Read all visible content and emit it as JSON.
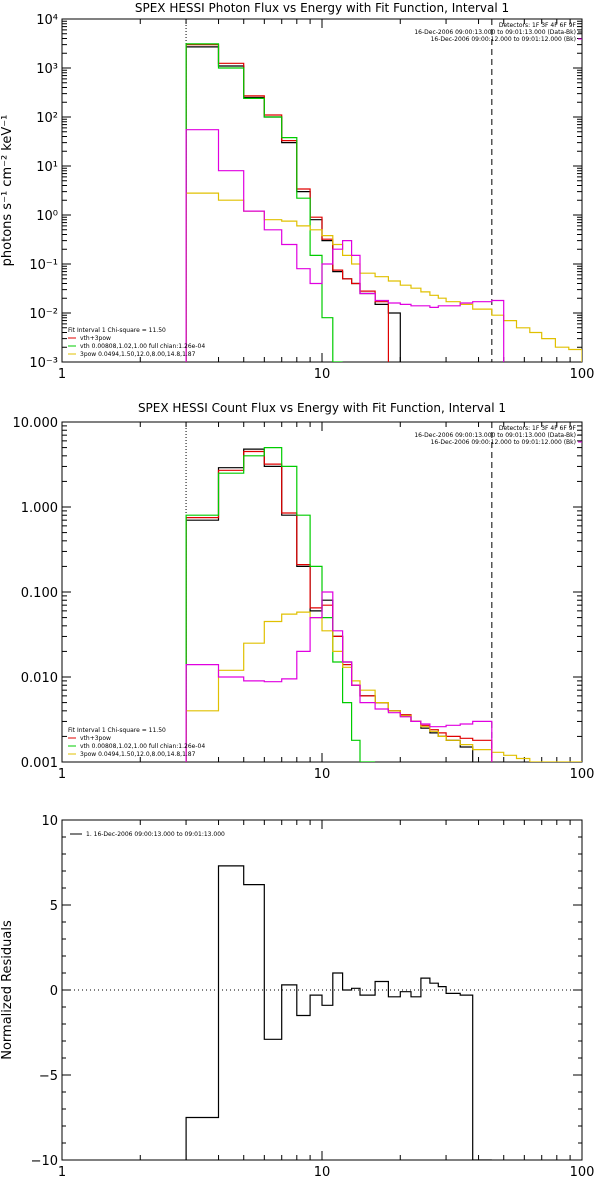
{
  "chart_data": [
    {
      "type": "line",
      "title": "SPEX HESSI Photon Flux vs Energy with Fit Function, Interval 1",
      "ylabel": "photons s⁻¹ cm⁻² keV⁻¹",
      "xlabel": "",
      "xscale": "log",
      "yscale": "log",
      "xlim": [
        1,
        100
      ],
      "ylim": [
        0.001,
        10000
      ],
      "xticks": [
        1,
        10,
        100
      ],
      "xtick_labels": [
        "1",
        "10",
        "100"
      ],
      "yticks": [
        0.001,
        0.01,
        0.1,
        1,
        10,
        100,
        1000,
        10000
      ],
      "ytick_labels": [
        "10⁻³",
        "10⁻²",
        "10⁻¹",
        "10⁰",
        "10¹",
        "10²",
        "10³",
        "10⁴"
      ],
      "vlines": [
        {
          "x": 3,
          "style": "dotted"
        },
        {
          "x": 45,
          "style": "dashed"
        }
      ],
      "legend_top": [
        "Detectors: 1F 3F 4F 6F 9F",
        "16-Dec-2006 09:00:13.000 to 09:01:13.000 (Data-Bk)",
        "16-Dec-2006 09:00:12.000 to 09:01:12.000 (Bk)"
      ],
      "legend_bottom": [
        "Fit Interval  1    Chi-square = 11.50",
        "vth+3pow",
        "vth 0.00808,1.02,1.00  full chian:1.26e-04",
        "3pow 0.0494,1.50,12.0,8.00,14.8,1.87"
      ],
      "edges": [
        3,
        4,
        5,
        6,
        7,
        8,
        9,
        10,
        11,
        12,
        13,
        14,
        16,
        18,
        20,
        22,
        24,
        26,
        28,
        30,
        34,
        38,
        45,
        50,
        56,
        63,
        70,
        79,
        89,
        100
      ],
      "series": [
        {
          "name": "Data-Bk",
          "color": "#000000",
          "values": [
            2700,
            1100,
            250,
            100,
            30,
            3,
            0.8,
            0.3,
            0.07,
            0.05,
            0.04,
            0.025,
            0.015,
            0.01
          ]
        },
        {
          "name": "vth+3pow",
          "color": "#e00000",
          "values": [
            3000,
            1250,
            270,
            110,
            33,
            3.4,
            0.9,
            0.32,
            0.075,
            0.05,
            0.04,
            0.028,
            0.017
          ]
        },
        {
          "name": "vth 0.00808,1.02,1.00  full chian:1.26e-04",
          "color": "#00cc00",
          "values": [
            3100,
            1000,
            240,
            100,
            38,
            2.2,
            0.15,
            0.008,
            0.0009
          ]
        },
        {
          "name": "3pow 0.0494,1.50,12.0,8.00,14.8,1.87",
          "color": "#e0c000",
          "values": [
            2.8,
            2.0,
            1.2,
            0.8,
            0.75,
            0.6,
            0.5,
            0.38,
            0.25,
            0.15,
            0.1,
            0.065,
            0.055,
            0.045,
            0.037,
            0.032,
            0.027,
            0.023,
            0.02,
            0.017,
            0.015,
            0.012,
            0.009,
            0.007,
            0.005,
            0.004,
            0.003,
            0.002,
            0.0018
          ]
        },
        {
          "name": "Bk",
          "color": "#e000e0",
          "values": [
            55,
            8,
            1.2,
            0.5,
            0.25,
            0.08,
            0.04,
            0.1,
            0.2,
            0.3,
            0.15,
            0.025,
            0.018,
            0.016,
            0.015,
            0.014,
            0.014,
            0.013,
            0.014,
            0.014,
            0.016,
            0.017,
            0.018
          ]
        }
      ]
    },
    {
      "type": "line",
      "title": "SPEX HESSI Count Flux vs Energy with Fit Function, Interval 1",
      "ylabel": "",
      "xlabel": "",
      "xscale": "log",
      "yscale": "log",
      "xlim": [
        1,
        100
      ],
      "ylim": [
        0.001,
        10
      ],
      "xticks": [
        1,
        10,
        100
      ],
      "xtick_labels": [
        "1",
        "10",
        "100"
      ],
      "yticks": [
        0.001,
        0.01,
        0.1,
        1,
        10
      ],
      "ytick_labels": [
        "0.001",
        "0.010",
        "0.100",
        "1.000",
        "10.000"
      ],
      "vlines": [
        {
          "x": 3,
          "style": "dotted"
        },
        {
          "x": 45,
          "style": "dashed"
        }
      ],
      "legend_top": [
        "Detectors: 1F 3F 4F 6F 9F",
        "16-Dec-2006 09:00:13.000 to 09:01:13.000 (Data-Bk)",
        "16-Dec-2006 09:00:12.000 to 09:01:12.000 (Bk)"
      ],
      "legend_bottom": [
        "Fit Interval  1    Chi-square = 11.50",
        "vth+3pow",
        "vth 0.00808,1.02,1.00  full chian:1.26e-04",
        "3pow 0.0494,1.50,12.0,8.00,14.8,1.87"
      ],
      "edges": [
        3,
        4,
        5,
        6,
        7,
        8,
        9,
        10,
        11,
        12,
        13,
        14,
        16,
        18,
        20,
        22,
        24,
        26,
        28,
        30,
        34,
        38,
        45,
        50,
        56,
        63,
        70,
        79,
        89,
        100
      ],
      "series": [
        {
          "name": "Data-Bk",
          "color": "#000000",
          "values": [
            0.7,
            2.9,
            4.8,
            3.0,
            0.8,
            0.2,
            0.06,
            0.08,
            0.03,
            0.015,
            0.008,
            0.006,
            0.005,
            0.004,
            0.0035,
            0.003,
            0.0025,
            0.0022,
            0.002,
            0.0018,
            0.0015
          ]
        },
        {
          "name": "vth+3pow",
          "color": "#e00000",
          "values": [
            0.75,
            2.7,
            4.5,
            3.2,
            0.85,
            0.21,
            0.065,
            0.07,
            0.03,
            0.014,
            0.008,
            0.006,
            0.005,
            0.004,
            0.0036,
            0.003,
            0.0027,
            0.0024,
            0.0022,
            0.002,
            0.0019,
            0.0018
          ]
        },
        {
          "name": "vth 0.00808,1.02,1.00  full chian:1.26e-04",
          "color": "#00cc00",
          "values": [
            0.8,
            2.5,
            4.0,
            5.0,
            3.0,
            0.8,
            0.2,
            0.05,
            0.015,
            0.005,
            0.0018,
            0.0008
          ]
        },
        {
          "name": "3pow 0.0494,1.50,12.0,8.00,14.8,1.87",
          "color": "#e0c000",
          "values": [
            0.004,
            0.012,
            0.025,
            0.045,
            0.055,
            0.058,
            0.05,
            0.035,
            0.02,
            0.013,
            0.009,
            0.007,
            0.005,
            0.004,
            0.0035,
            0.003,
            0.0026,
            0.0023,
            0.002,
            0.0018,
            0.0016,
            0.0014,
            0.0013,
            0.0012,
            0.0011,
            0.001,
            0.0009,
            0.0008,
            0.0008
          ]
        },
        {
          "name": "Bk",
          "color": "#e000e0",
          "values": [
            0.014,
            0.01,
            0.009,
            0.0088,
            0.0095,
            0.02,
            0.05,
            0.1,
            0.035,
            0.015,
            0.008,
            0.005,
            0.0042,
            0.0038,
            0.0034,
            0.003,
            0.0028,
            0.0026,
            0.0026,
            0.0027,
            0.0028,
            0.003
          ]
        }
      ]
    },
    {
      "type": "line",
      "title": "",
      "ylabel": "Normalized Residuals",
      "xlabel": "",
      "xscale": "log",
      "yscale": "linear",
      "xlim": [
        1,
        100
      ],
      "ylim": [
        -10,
        10
      ],
      "xticks": [
        1,
        10,
        100
      ],
      "xtick_labels": [
        "1",
        "10",
        "100"
      ],
      "yticks": [
        -10,
        -5,
        0,
        5,
        10
      ],
      "ytick_labels": [
        "−10",
        "−5",
        "0",
        "5",
        "10"
      ],
      "legend_top": [
        "1. 16-Dec-2006 09:00:13.000 to 09:01:13.000"
      ],
      "edges": [
        3,
        4,
        5,
        6,
        7,
        8,
        9,
        10,
        11,
        12,
        13,
        14,
        16,
        18,
        20,
        22,
        24,
        26,
        28,
        30,
        34,
        38,
        45
      ],
      "series": [
        {
          "name": "1. 16-Dec-2006 09:00:13.000 to 09:01:13.000",
          "color": "#000000",
          "values": [
            -7.5,
            7.3,
            6.2,
            -2.9,
            0.3,
            -1.5,
            -0.3,
            -0.9,
            1.0,
            0.0,
            0.1,
            -0.3,
            0.5,
            -0.4,
            -0.1,
            -0.4,
            0.7,
            0.4,
            0.2,
            -0.2,
            -0.3,
            -10.0
          ]
        }
      ]
    }
  ]
}
